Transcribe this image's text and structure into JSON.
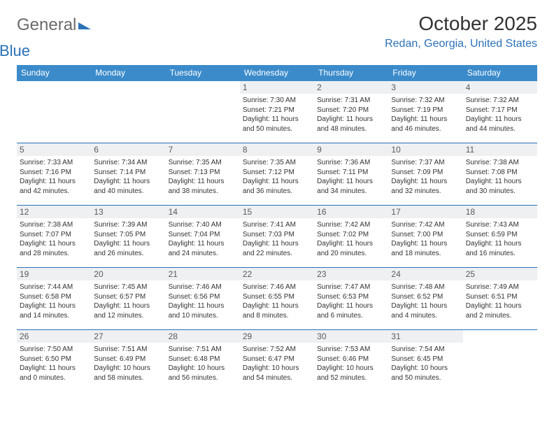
{
  "logo": {
    "word1": "General",
    "word2": "Blue"
  },
  "title": "October 2025",
  "location": "Redan, Georgia, United States",
  "columns": [
    "Sunday",
    "Monday",
    "Tuesday",
    "Wednesday",
    "Thursday",
    "Friday",
    "Saturday"
  ],
  "colors": {
    "accent": "#2a71b8",
    "header_bg": "#3b8bca",
    "daynum_bg": "#eef0f2",
    "text": "#333333",
    "logo_gray": "#6a6a6a"
  },
  "typography": {
    "title_fontsize": 28,
    "location_fontsize": 16,
    "column_fontsize": 12,
    "daynum_fontsize": 12,
    "facts_fontsize": 10
  },
  "weeks": [
    [
      {
        "n": "",
        "empty": true
      },
      {
        "n": "",
        "empty": true
      },
      {
        "n": "",
        "empty": true
      },
      {
        "n": "1",
        "sunrise": "7:30 AM",
        "sunset": "7:21 PM",
        "daylight": "11 hours and 50 minutes."
      },
      {
        "n": "2",
        "sunrise": "7:31 AM",
        "sunset": "7:20 PM",
        "daylight": "11 hours and 48 minutes."
      },
      {
        "n": "3",
        "sunrise": "7:32 AM",
        "sunset": "7:19 PM",
        "daylight": "11 hours and 46 minutes."
      },
      {
        "n": "4",
        "sunrise": "7:32 AM",
        "sunset": "7:17 PM",
        "daylight": "11 hours and 44 minutes."
      }
    ],
    [
      {
        "n": "5",
        "sunrise": "7:33 AM",
        "sunset": "7:16 PM",
        "daylight": "11 hours and 42 minutes."
      },
      {
        "n": "6",
        "sunrise": "7:34 AM",
        "sunset": "7:14 PM",
        "daylight": "11 hours and 40 minutes."
      },
      {
        "n": "7",
        "sunrise": "7:35 AM",
        "sunset": "7:13 PM",
        "daylight": "11 hours and 38 minutes."
      },
      {
        "n": "8",
        "sunrise": "7:35 AM",
        "sunset": "7:12 PM",
        "daylight": "11 hours and 36 minutes."
      },
      {
        "n": "9",
        "sunrise": "7:36 AM",
        "sunset": "7:11 PM",
        "daylight": "11 hours and 34 minutes."
      },
      {
        "n": "10",
        "sunrise": "7:37 AM",
        "sunset": "7:09 PM",
        "daylight": "11 hours and 32 minutes."
      },
      {
        "n": "11",
        "sunrise": "7:38 AM",
        "sunset": "7:08 PM",
        "daylight": "11 hours and 30 minutes."
      }
    ],
    [
      {
        "n": "12",
        "sunrise": "7:38 AM",
        "sunset": "7:07 PM",
        "daylight": "11 hours and 28 minutes."
      },
      {
        "n": "13",
        "sunrise": "7:39 AM",
        "sunset": "7:05 PM",
        "daylight": "11 hours and 26 minutes."
      },
      {
        "n": "14",
        "sunrise": "7:40 AM",
        "sunset": "7:04 PM",
        "daylight": "11 hours and 24 minutes."
      },
      {
        "n": "15",
        "sunrise": "7:41 AM",
        "sunset": "7:03 PM",
        "daylight": "11 hours and 22 minutes."
      },
      {
        "n": "16",
        "sunrise": "7:42 AM",
        "sunset": "7:02 PM",
        "daylight": "11 hours and 20 minutes."
      },
      {
        "n": "17",
        "sunrise": "7:42 AM",
        "sunset": "7:00 PM",
        "daylight": "11 hours and 18 minutes."
      },
      {
        "n": "18",
        "sunrise": "7:43 AM",
        "sunset": "6:59 PM",
        "daylight": "11 hours and 16 minutes."
      }
    ],
    [
      {
        "n": "19",
        "sunrise": "7:44 AM",
        "sunset": "6:58 PM",
        "daylight": "11 hours and 14 minutes."
      },
      {
        "n": "20",
        "sunrise": "7:45 AM",
        "sunset": "6:57 PM",
        "daylight": "11 hours and 12 minutes."
      },
      {
        "n": "21",
        "sunrise": "7:46 AM",
        "sunset": "6:56 PM",
        "daylight": "11 hours and 10 minutes."
      },
      {
        "n": "22",
        "sunrise": "7:46 AM",
        "sunset": "6:55 PM",
        "daylight": "11 hours and 8 minutes."
      },
      {
        "n": "23",
        "sunrise": "7:47 AM",
        "sunset": "6:53 PM",
        "daylight": "11 hours and 6 minutes."
      },
      {
        "n": "24",
        "sunrise": "7:48 AM",
        "sunset": "6:52 PM",
        "daylight": "11 hours and 4 minutes."
      },
      {
        "n": "25",
        "sunrise": "7:49 AM",
        "sunset": "6:51 PM",
        "daylight": "11 hours and 2 minutes."
      }
    ],
    [
      {
        "n": "26",
        "sunrise": "7:50 AM",
        "sunset": "6:50 PM",
        "daylight": "11 hours and 0 minutes."
      },
      {
        "n": "27",
        "sunrise": "7:51 AM",
        "sunset": "6:49 PM",
        "daylight": "10 hours and 58 minutes."
      },
      {
        "n": "28",
        "sunrise": "7:51 AM",
        "sunset": "6:48 PM",
        "daylight": "10 hours and 56 minutes."
      },
      {
        "n": "29",
        "sunrise": "7:52 AM",
        "sunset": "6:47 PM",
        "daylight": "10 hours and 54 minutes."
      },
      {
        "n": "30",
        "sunrise": "7:53 AM",
        "sunset": "6:46 PM",
        "daylight": "10 hours and 52 minutes."
      },
      {
        "n": "31",
        "sunrise": "7:54 AM",
        "sunset": "6:45 PM",
        "daylight": "10 hours and 50 minutes."
      },
      {
        "n": "",
        "empty": true
      }
    ]
  ]
}
